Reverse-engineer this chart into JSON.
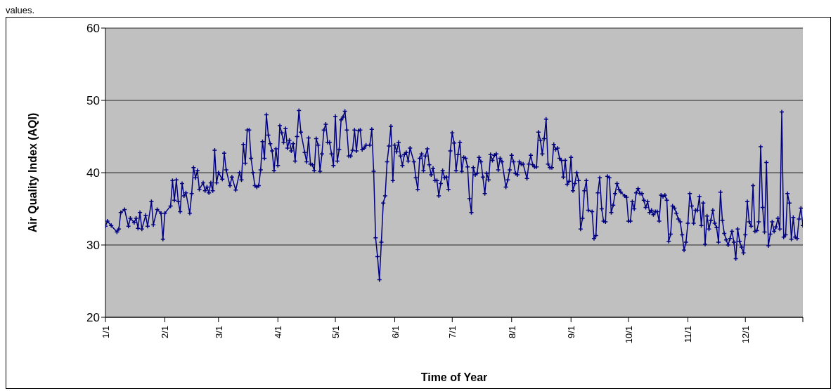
{
  "chart_data": {
    "type": "line",
    "xlabel": "Time of Year",
    "ylabel": "Air Quality Index (AQI)",
    "annotations": [
      "values."
    ],
    "color": "#000080",
    "marker": "cross",
    "line_style": "solid",
    "grid": "y",
    "ylim": [
      20,
      60
    ],
    "yticks": [
      20,
      30,
      40,
      50,
      60
    ],
    "xlim": [
      "--01-01",
      "--12-31"
    ],
    "xticks": [
      {
        "value": "--01-01",
        "label": "1/1"
      },
      {
        "value": "--02-01",
        "label": "2/1"
      },
      {
        "value": "--03-01",
        "label": "3/1"
      },
      {
        "value": "--04-01",
        "label": "4/1"
      },
      {
        "value": "--05-01",
        "label": "5/1"
      },
      {
        "value": "--06-01",
        "label": "6/1"
      },
      {
        "value": "--07-01",
        "label": "7/1"
      },
      {
        "value": "--08-01",
        "label": "8/1"
      },
      {
        "value": "--09-01",
        "label": "9/1"
      },
      {
        "value": "--10-01",
        "label": "10/1"
      },
      {
        "value": "--11-01",
        "label": "11/1"
      },
      {
        "value": "--12-01",
        "label": "12/1"
      },
      {
        "value": "--12-31",
        "label": null
      }
    ],
    "x": [
      "--01-01",
      "--01-02",
      "--01-04",
      "--01-07",
      "--01-08",
      "--01-09",
      "--01-11",
      "--01-13",
      "--01-14",
      "--01-16",
      "--01-17",
      "--01-18",
      "--01-19",
      "--01-20",
      "--01-22",
      "--01-23",
      "--01-25",
      "--01-26",
      "--01-28",
      "--01-30",
      "--01-31",
      "--02-01",
      "--02-04",
      "--02-05",
      "--02-06",
      "--02-07",
      "--02-08",
      "--02-09",
      "--02-10",
      "--02-11",
      "--02-12",
      "--02-14",
      "--02-15",
      "--02-16",
      "--02-17",
      "--02-18",
      "--02-19",
      "--02-21",
      "--02-22",
      "--02-23",
      "--02-24",
      "--02-25",
      "--02-26",
      "--02-27",
      "--02-28",
      "--03-01",
      "--03-03",
      "--03-04",
      "--03-05",
      "--03-07",
      "--03-08",
      "--03-10",
      "--03-12",
      "--03-13",
      "--03-14",
      "--03-15",
      "--03-16",
      "--03-17",
      "--03-18",
      "--03-19",
      "--03-20",
      "--03-21",
      "--03-22",
      "--03-23",
      "--03-24",
      "--03-25",
      "--03-26",
      "--03-27",
      "--03-28",
      "--03-29",
      "--03-30",
      "--03-31",
      "--04-01",
      "--04-02",
      "--04-03",
      "--04-04",
      "--04-05",
      "--04-06",
      "--04-07",
      "--04-08",
      "--04-09",
      "--04-10",
      "--04-11",
      "--04-12",
      "--04-13",
      "--04-15",
      "--04-16",
      "--04-17",
      "--04-18",
      "--04-19",
      "--04-20",
      "--04-21",
      "--04-22",
      "--04-23",
      "--04-24",
      "--04-25",
      "--04-26",
      "--04-27",
      "--04-28",
      "--04-29",
      "--04-30",
      "--05-01",
      "--05-02",
      "--05-03",
      "--05-04",
      "--05-05",
      "--05-06",
      "--05-07",
      "--05-08",
      "--05-09",
      "--05-10",
      "--05-11",
      "--05-12",
      "--05-13",
      "--05-14",
      "--05-15",
      "--05-16",
      "--05-17",
      "--05-19",
      "--05-20",
      "--05-21",
      "--05-22",
      "--05-23",
      "--05-24",
      "--05-25",
      "--05-26",
      "--05-27",
      "--05-28",
      "--05-29",
      "--05-30",
      "--05-31",
      "--06-01",
      "--06-02",
      "--06-03",
      "--06-04",
      "--06-05",
      "--06-06",
      "--06-07",
      "--06-08",
      "--06-09",
      "--06-11",
      "--06-12",
      "--06-13",
      "--06-14",
      "--06-15",
      "--06-16",
      "--06-17",
      "--06-18",
      "--06-19",
      "--06-20",
      "--06-21",
      "--06-22",
      "--06-23",
      "--06-24",
      "--06-25",
      "--06-26",
      "--06-27",
      "--06-28",
      "--06-29",
      "--06-30",
      "--07-01",
      "--07-02",
      "--07-03",
      "--07-04",
      "--07-05",
      "--07-06",
      "--07-07",
      "--07-08",
      "--07-09",
      "--07-10",
      "--07-11",
      "--07-12",
      "--07-13",
      "--07-14",
      "--07-15",
      "--07-16",
      "--07-17",
      "--07-18",
      "--07-19",
      "--07-20",
      "--07-21",
      "--07-22",
      "--07-23",
      "--07-24",
      "--07-25",
      "--07-26",
      "--07-27",
      "--07-29",
      "--07-30",
      "--07-31",
      "--08-01",
      "--08-02",
      "--08-03",
      "--08-04",
      "--08-05",
      "--08-06",
      "--08-07",
      "--08-09",
      "--08-10",
      "--08-11",
      "--08-12",
      "--08-13",
      "--08-14",
      "--08-15",
      "--08-16",
      "--08-17",
      "--08-18",
      "--08-19",
      "--08-20",
      "--08-21",
      "--08-22",
      "--08-23",
      "--08-24",
      "--08-25",
      "--08-26",
      "--08-27",
      "--08-28",
      "--08-29",
      "--08-30",
      "--08-31",
      "--09-01",
      "--09-02",
      "--09-03",
      "--09-04",
      "--09-05",
      "--09-06",
      "--09-07",
      "--09-08",
      "--09-09",
      "--09-10",
      "--09-12",
      "--09-13",
      "--09-14",
      "--09-15",
      "--09-16",
      "--09-17",
      "--09-18",
      "--09-19",
      "--09-20",
      "--09-21",
      "--09-22",
      "--09-23",
      "--09-24",
      "--09-25",
      "--09-26",
      "--09-27",
      "--09-29",
      "--09-30",
      "--10-01",
      "--10-02",
      "--10-03",
      "--10-04",
      "--10-05",
      "--10-06",
      "--10-07",
      "--10-08",
      "--10-09",
      "--10-10",
      "--10-11",
      "--10-12",
      "--10-13",
      "--10-14",
      "--10-15",
      "--10-16",
      "--10-17",
      "--10-18",
      "--10-19",
      "--10-20",
      "--10-21",
      "--10-22",
      "--10-23",
      "--10-24",
      "--10-25",
      "--10-26",
      "--10-27",
      "--10-28",
      "--10-29",
      "--10-30",
      "--10-31",
      "--11-01",
      "--11-02",
      "--11-03",
      "--11-04",
      "--11-05",
      "--11-06",
      "--11-07",
      "--11-08",
      "--11-09",
      "--11-10",
      "--11-11",
      "--11-12",
      "--11-13",
      "--11-14",
      "--11-15",
      "--11-16",
      "--11-17",
      "--11-18",
      "--11-19",
      "--11-20",
      "--11-21",
      "--11-22",
      "--11-23",
      "--11-24",
      "--11-25",
      "--11-26",
      "--11-27",
      "--11-28",
      "--11-29",
      "--11-30",
      "--12-01",
      "--12-02",
      "--12-03",
      "--12-04",
      "--12-05",
      "--12-06",
      "--12-07",
      "--12-08",
      "--12-09",
      "--12-10",
      "--12-11",
      "--12-12",
      "--12-13",
      "--12-14",
      "--12-15",
      "--12-16",
      "--12-17",
      "--12-18",
      "--12-19",
      "--12-20",
      "--12-21",
      "--12-22",
      "--12-23",
      "--12-24",
      "--12-25",
      "--12-26",
      "--12-27",
      "--12-28",
      "--12-29",
      "--12-30",
      "--12-31"
    ],
    "values": [
      32.6,
      33.3,
      32.7,
      31.8,
      32.2,
      34.5,
      34.9,
      32.6,
      33.7,
      33.1,
      33.7,
      32.3,
      34.5,
      32.2,
      34.1,
      32.6,
      36.0,
      32.8,
      34.9,
      34.4,
      30.8,
      34.4,
      35.4,
      38.9,
      36.2,
      39.0,
      36.0,
      34.6,
      38.5,
      36.8,
      37.2,
      34.4,
      37.1,
      40.7,
      39.3,
      40.3,
      37.7,
      38.6,
      37.5,
      38.0,
      37.2,
      38.6,
      37.5,
      43.1,
      38.6,
      40.0,
      39.1,
      42.7,
      40.4,
      38.2,
      39.4,
      37.6,
      40.0,
      39.0,
      43.9,
      41.3,
      45.9,
      45.9,
      42.0,
      40.0,
      38.2,
      38.0,
      38.2,
      40.4,
      44.3,
      42.0,
      48.0,
      45.2,
      44.0,
      43.0,
      40.3,
      43.3,
      41.0,
      46.5,
      45.5,
      44.2,
      46.1,
      43.4,
      44.5,
      43.0,
      44.0,
      41.6,
      45.0,
      48.6,
      45.6,
      42.8,
      41.5,
      44.8,
      41.2,
      41.1,
      40.3,
      44.7,
      43.8,
      40.2,
      42.6,
      45.9,
      46.7,
      44.2,
      44.2,
      42.6,
      41.0,
      47.8,
      41.6,
      43.2,
      47.3,
      47.7,
      48.5,
      45.9,
      42.3,
      42.3,
      43.1,
      45.9,
      43.0,
      45.8,
      45.9,
      43.2,
      43.4,
      43.8,
      43.8,
      46.0,
      40.2,
      31.0,
      28.4,
      25.2,
      30.4,
      35.8,
      36.8,
      41.5,
      43.7,
      46.4,
      38.9,
      43.8,
      42.9,
      44.2,
      42.3,
      41.0,
      42.5,
      42.8,
      41.6,
      43.4,
      41.5,
      39.3,
      37.7,
      42.0,
      42.6,
      40.3,
      42.3,
      43.3,
      41.1,
      39.7,
      40.6,
      38.9,
      38.9,
      36.8,
      38.5,
      40.3,
      39.3,
      39.4,
      37.7,
      43.0,
      45.5,
      44.1,
      40.3,
      42.5,
      44.2,
      40.2,
      42.1,
      42.0,
      40.8,
      36.4,
      34.5,
      40.7,
      39.7,
      39.9,
      42.1,
      41.5,
      39.4,
      37.1,
      39.9,
      39.0,
      42.5,
      41.7,
      42.4,
      42.6,
      40.4,
      42.0,
      41.5,
      38.0,
      39.0,
      40.4,
      42.4,
      41.5,
      39.9,
      39.7,
      41.5,
      41.2,
      41.2,
      39.2,
      41.2,
      42.4,
      41.1,
      40.8,
      40.8,
      45.6,
      44.5,
      42.6,
      44.7,
      47.4,
      41.2,
      40.7,
      40.7,
      43.9,
      43.2,
      43.4,
      42.0,
      41.7,
      39.4,
      41.7,
      38.4,
      38.8,
      42.1,
      37.5,
      38.5,
      40.0,
      38.9,
      32.2,
      33.7,
      37.5,
      38.9,
      34.8,
      34.6,
      30.9,
      31.3,
      37.2,
      39.3,
      35.0,
      33.3,
      33.2,
      39.5,
      39.3,
      34.5,
      35.5,
      37.1,
      38.5,
      37.7,
      37.3,
      36.8,
      36.6,
      33.3,
      33.3,
      36.0,
      35.0,
      37.2,
      37.8,
      37.1,
      37.1,
      36.2,
      35.2,
      36.0,
      34.5,
      34.8,
      34.2,
      34.6,
      34.6,
      33.3,
      36.9,
      36.7,
      36.9,
      36.2,
      30.5,
      31.5,
      35.4,
      35.1,
      34.4,
      33.6,
      33.2,
      31.4,
      29.3,
      30.4,
      33.0,
      37.1,
      35.4,
      33.0,
      34.8,
      34.8,
      36.7,
      32.7,
      35.8,
      30.1,
      34.0,
      32.2,
      33.4,
      34.8,
      33.0,
      32.4,
      30.4,
      37.3,
      33.4,
      31.6,
      30.7,
      30.0,
      30.9,
      31.9,
      30.4,
      28.1,
      32.2,
      30.5,
      29.7,
      28.9,
      31.4,
      36.0,
      33.2,
      32.6,
      38.2,
      31.9,
      32.0,
      33.2,
      43.6,
      35.2,
      31.8,
      41.4,
      29.9,
      31.5,
      33.2,
      31.9,
      32.5,
      33.7,
      32.2,
      48.4,
      31.1,
      31.4,
      37.1,
      35.8,
      30.8,
      33.8,
      31.1,
      30.9,
      33.6,
      35.1,
      32.7
    ]
  }
}
